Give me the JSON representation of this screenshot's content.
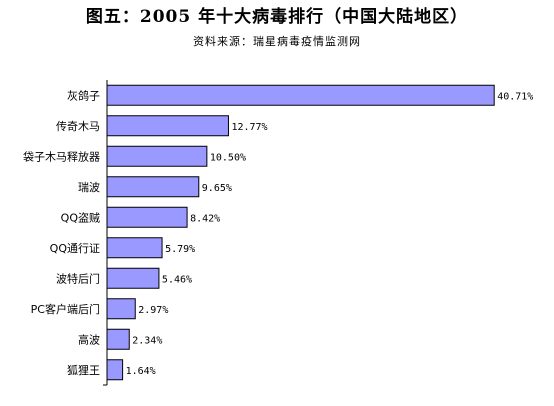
{
  "chart_data": {
    "type": "bar",
    "orientation": "horizontal",
    "title": "图五：2005 年十大病毒排行（中国大陆地区）",
    "subtitle": "资料来源：瑞星病毒疫情监测网",
    "categories": [
      "灰鸽子",
      "传奇木马",
      "袋子木马释放器",
      "瑞波",
      "QQ盗贼",
      "QQ通行证",
      "波特后门",
      "PC客户端后门",
      "高波",
      "狐狸王"
    ],
    "values": [
      40.71,
      12.77,
      10.5,
      9.65,
      8.42,
      5.79,
      5.46,
      2.97,
      2.34,
      1.64
    ],
    "value_labels": [
      "40.71%",
      "12.77%",
      "10.50%",
      "9.65%",
      "8.42%",
      "5.79%",
      "5.46%",
      "2.97%",
      "2.34%",
      "1.64%"
    ],
    "xlim": [
      0,
      45
    ],
    "grid": false,
    "legend": "none",
    "bar_color": "#9999ff",
    "bar_edge_color": "#000000"
  }
}
